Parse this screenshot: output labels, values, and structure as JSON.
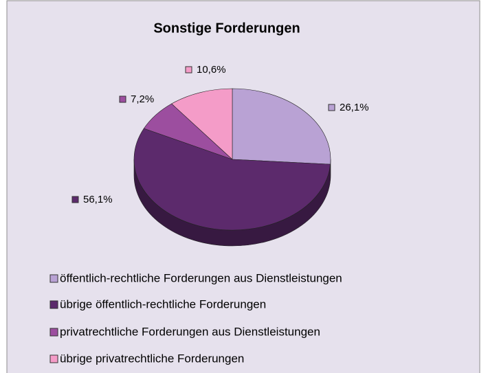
{
  "chart_data": {
    "type": "pie",
    "title": "Sonstige Forderungen",
    "categories": [
      "öffentlich-rechtliche Forderungen aus Dienstleistungen",
      "übrige öffentlich-rechtliche Forderungen",
      "privatrechtliche Forderungen aus Dienstleistungen",
      "übrige privatrechtliche Forderungen"
    ],
    "values": [
      26.1,
      56.1,
      7.2,
      10.6
    ],
    "value_labels": [
      "26,1%",
      "56,1%",
      "7,2%",
      "10,6%"
    ],
    "colors": [
      "#b9a2d4",
      "#5c2a6c",
      "#9c4e9f",
      "#f49cc8"
    ],
    "legend": "bottom"
  }
}
